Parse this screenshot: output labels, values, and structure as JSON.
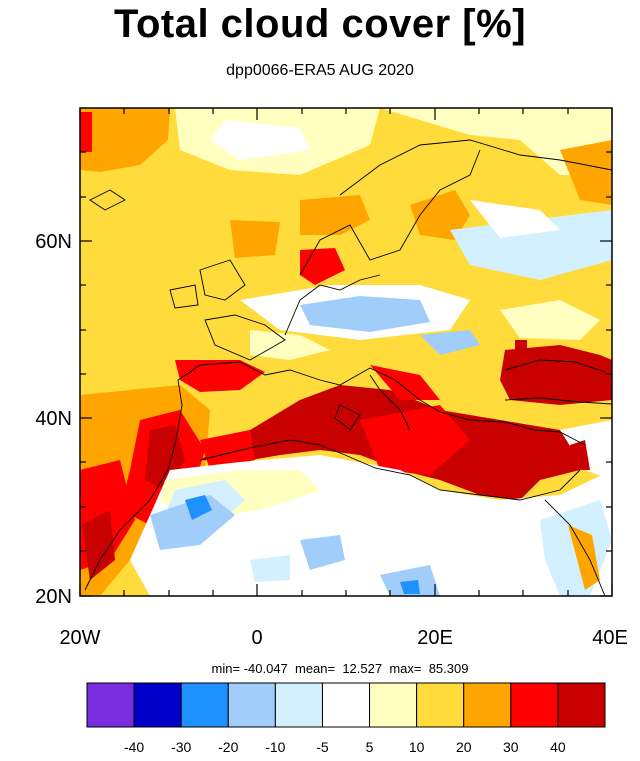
{
  "title": "Total cloud cover [%]",
  "subtitle": "dpp0066-ERA5 AUG 2020",
  "stats": "min= -40.047  mean=  12.527  max=  85.309",
  "axes": {
    "lon_ticks": [
      "20W",
      "0",
      "20E",
      "40E"
    ],
    "lat_ticks": [
      "20N",
      "40N",
      "60N"
    ]
  },
  "colorbar": {
    "colors": [
      "#7a2de0",
      "#0000c8",
      "#1e90ff",
      "#a0cdfa",
      "#d2f0ff",
      "#ffffff",
      "#ffffc0",
      "#ffdc3c",
      "#ffa500",
      "#ff0000",
      "#c80000"
    ],
    "labels": [
      "-40",
      "-30",
      "-20",
      "-10",
      "-5",
      "5",
      "10",
      "20",
      "30",
      "40"
    ]
  },
  "chart_data": {
    "type": "heatmap",
    "title": "Total cloud cover [%]",
    "subtitle": "dpp0066-ERA5 AUG 2020",
    "xlim": [
      -20,
      40
    ],
    "ylim": [
      20,
      75
    ],
    "levels": [
      -40,
      -30,
      -20,
      -10,
      -5,
      5,
      10,
      20,
      30,
      40
    ],
    "min": -40.047,
    "mean": 12.527,
    "max": 85.309
  }
}
